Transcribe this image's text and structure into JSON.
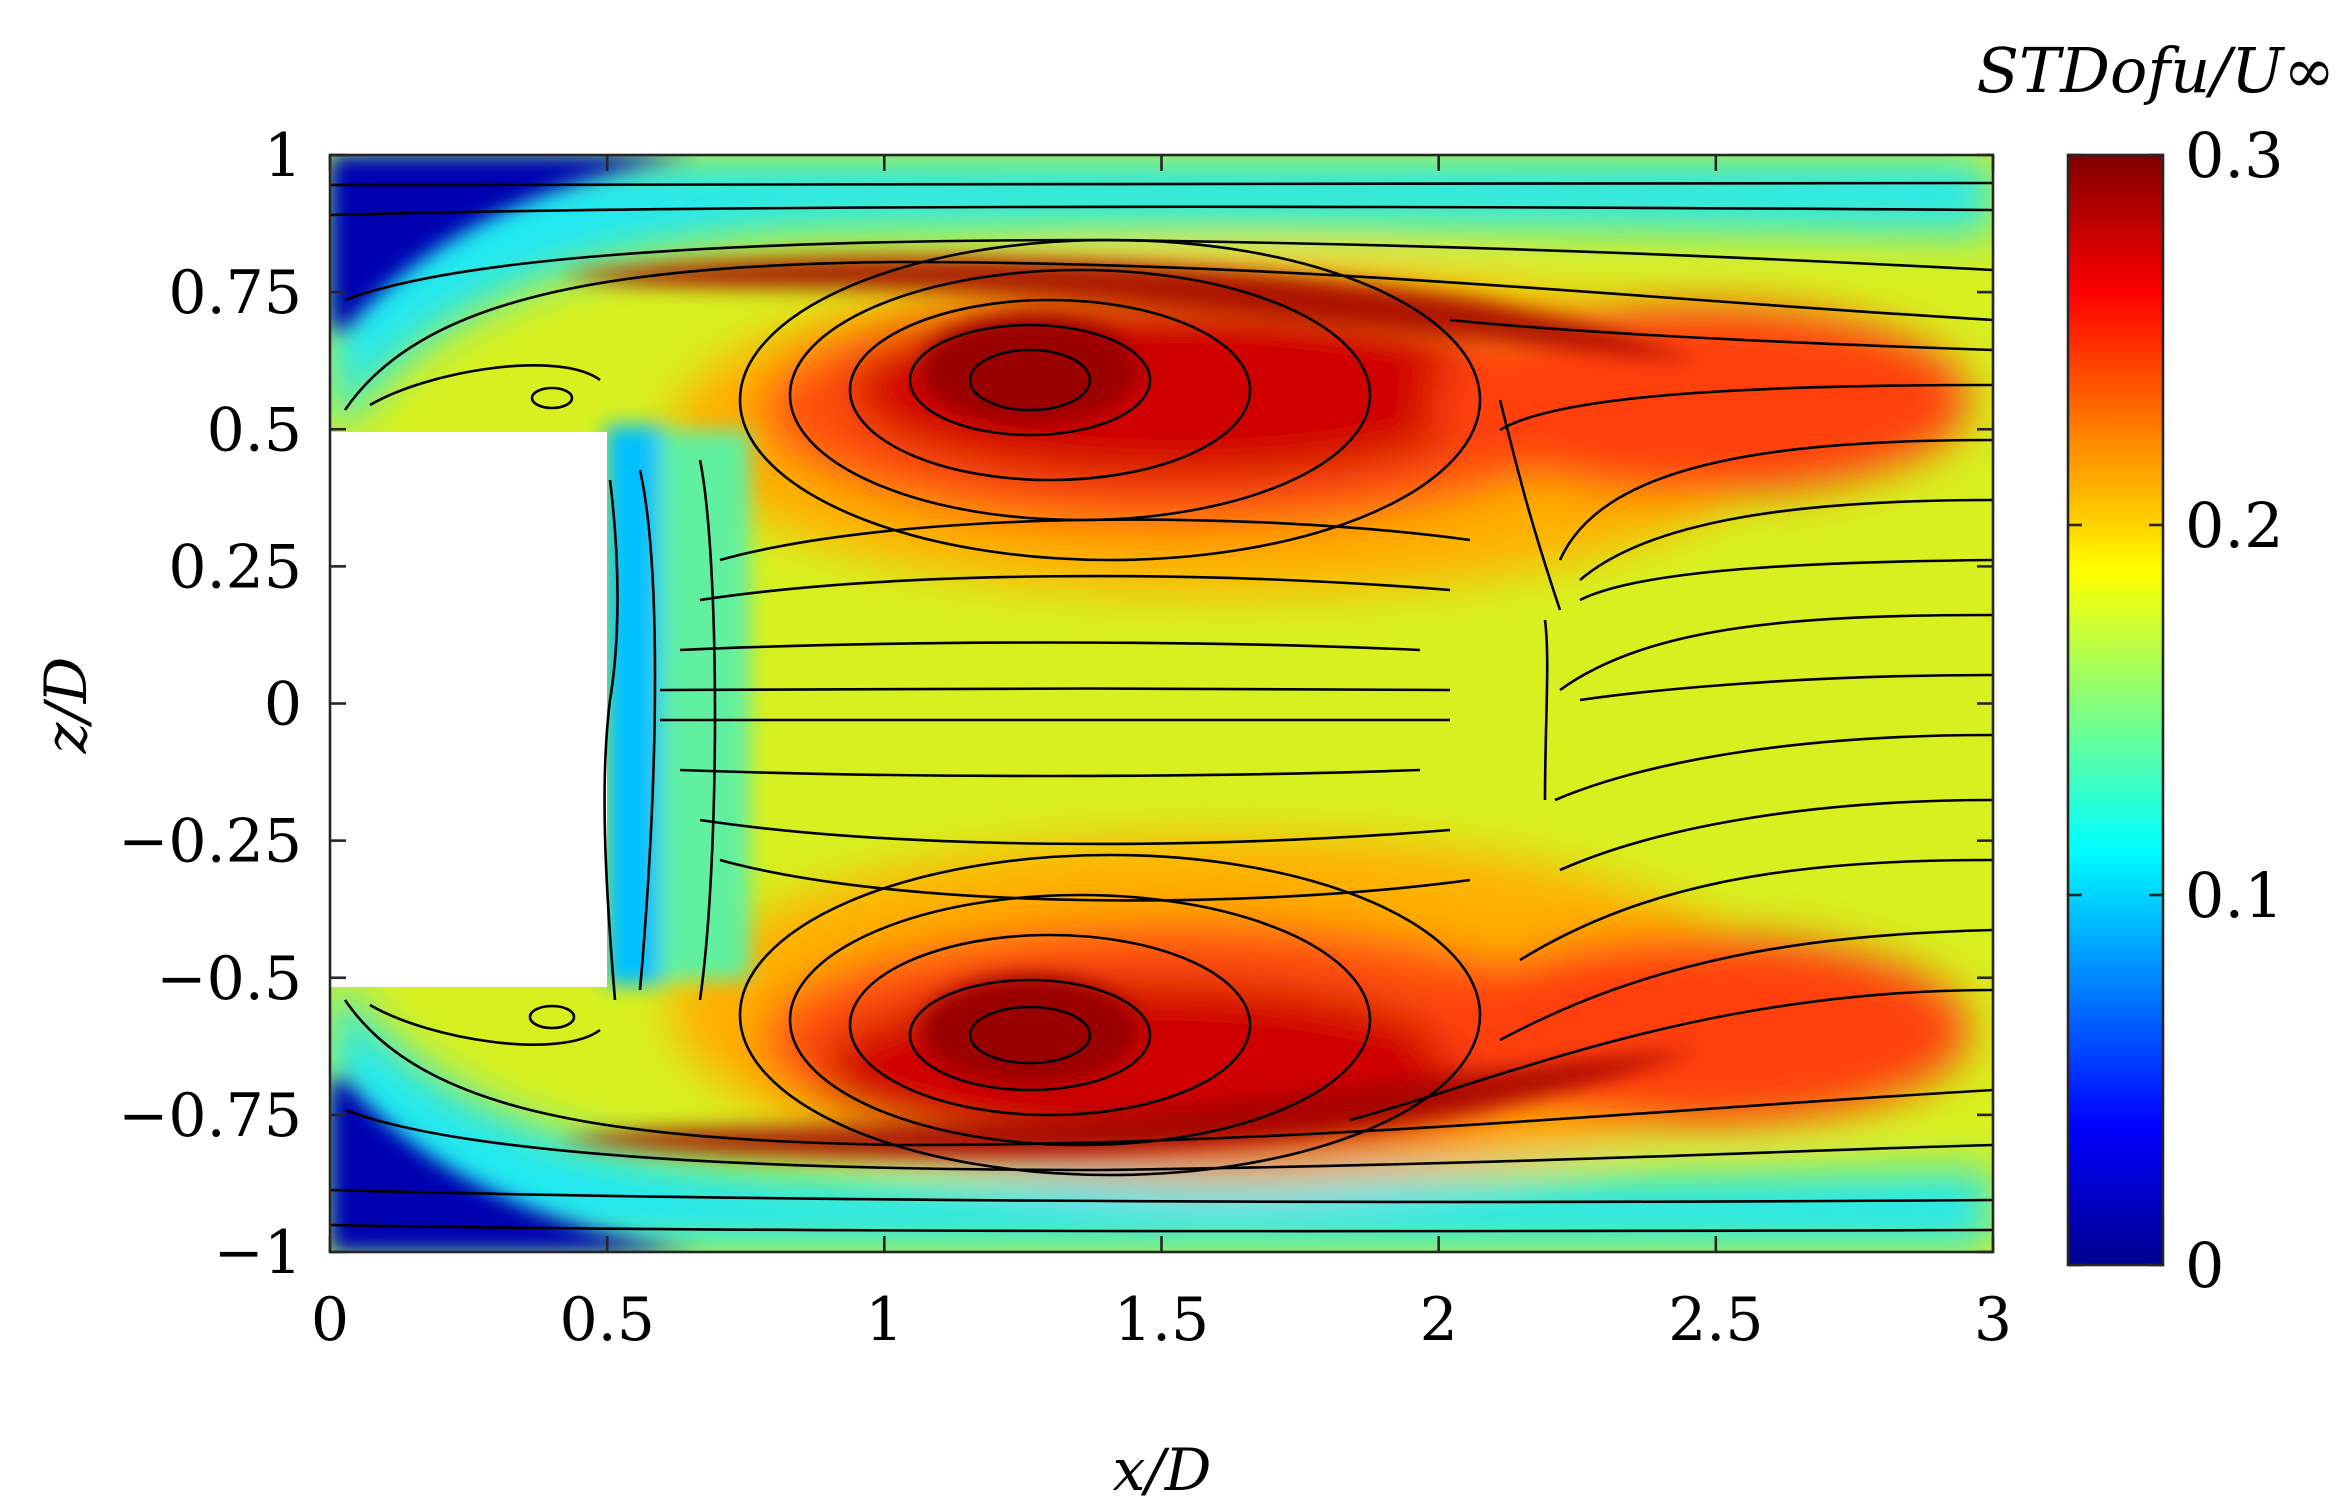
{
  "chart_data": {
    "type": "heatmap",
    "title": "",
    "xlabel": "x/D",
    "ylabel": "z/D",
    "xlim": [
      0,
      3
    ],
    "ylim": [
      -1,
      1
    ],
    "x_ticks": [
      0,
      0.5,
      1,
      1.5,
      2,
      2.5,
      3
    ],
    "x_tick_labels": [
      "0",
      "0.5",
      "1",
      "1.5",
      "2",
      "2.5",
      "3"
    ],
    "y_ticks": [
      1,
      0.75,
      0.5,
      0.25,
      0,
      -0.25,
      -0.5,
      -0.75,
      -1
    ],
    "y_tick_labels": [
      "1",
      "0.75",
      "0.5",
      "0.25",
      "0",
      "−0.25",
      "−0.5",
      "−0.75",
      "−1"
    ],
    "colorbar": {
      "label": "STDofu/U∞",
      "range": [
        0,
        0.3
      ],
      "ticks": [
        0,
        0.1,
        0.2,
        0.3
      ],
      "tick_labels": [
        "0",
        "0.1",
        "0.2",
        "0.3"
      ],
      "colormap": "jet"
    },
    "body_region": {
      "x": [
        0,
        0.5
      ],
      "z": [
        -0.5,
        0.5
      ]
    },
    "field_features": [
      {
        "type": "vortex",
        "x": 1.27,
        "z": 0.6,
        "std": 0.3
      },
      {
        "type": "vortex",
        "x": 1.27,
        "z": -0.58,
        "std": 0.3
      },
      {
        "type": "saddle",
        "x": 2.2,
        "z": 0.0
      }
    ],
    "streamlines": true,
    "grid": false
  }
}
